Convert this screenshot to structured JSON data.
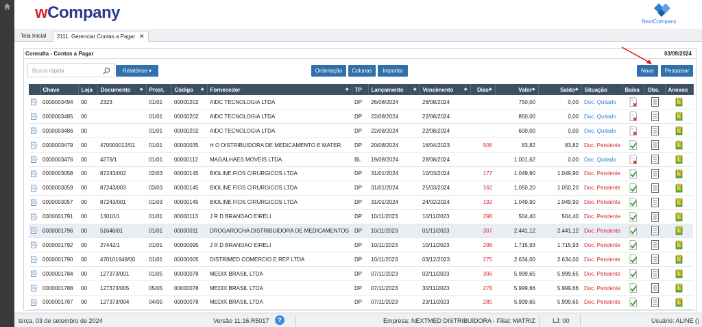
{
  "app": {
    "logo_w": "w",
    "logo_company": "Company",
    "partner_logo": "NextCompany"
  },
  "tabs": [
    {
      "label": "Tela Inicial"
    },
    {
      "label": "2111. Gerenciar Contas a Pagar",
      "close": "✕"
    }
  ],
  "panel": {
    "title": "Consulta - Contas a Pagar",
    "date": "03/09/2024"
  },
  "toolbar": {
    "search_placeholder": "Busca rápida",
    "relatorios": "Relatórios ▾",
    "ordenacao": "Ordenação",
    "colunas": "Colunas",
    "importar": "Importar",
    "novo": "Novo",
    "pesquisar": "Pesquisar"
  },
  "columns": [
    "",
    "Chave",
    "Loja",
    "Documento",
    "Prest.",
    "Código",
    "Fornecedor",
    "TP",
    "Lançamento",
    "Vencimento",
    "Dias",
    "Valor",
    "Saldo",
    "Situação",
    "Baixa",
    "Obs.",
    "Anexos"
  ],
  "rows": [
    {
      "chave": "0000003494",
      "loja": "00",
      "documento": "2323",
      "prest": "01/01",
      "codigo": "00000202",
      "fornecedor": "AIDC TECNOLOGIA LTDA",
      "tp": "DP",
      "lancamento": "26/08/2024",
      "vencimento": "26/08/2024",
      "dias": "",
      "valor": "750,00",
      "saldo": "0,00",
      "situacao": "Doc. Quitado",
      "baixa": "x"
    },
    {
      "chave": "0000003485",
      "loja": "00",
      "documento": "",
      "prest": "01/01",
      "codigo": "00000202",
      "fornecedor": "AIDC TECNOLOGIA LTDA",
      "tp": "DP",
      "lancamento": "22/08/2024",
      "vencimento": "22/08/2024",
      "dias": "",
      "valor": "850,00",
      "saldo": "0,00",
      "situacao": "Doc. Quitado",
      "baixa": "x"
    },
    {
      "chave": "0000003486",
      "loja": "00",
      "documento": "",
      "prest": "01/01",
      "codigo": "00000202",
      "fornecedor": "AIDC TECNOLOGIA LTDA",
      "tp": "DP",
      "lancamento": "22/08/2024",
      "vencimento": "22/08/2024",
      "dias": "",
      "valor": "600,00",
      "saldo": "0,00",
      "situacao": "Doc. Quitado",
      "baixa": "x"
    },
    {
      "chave": "0000003479",
      "loja": "00",
      "documento": "470000012/01",
      "prest": "01/01",
      "codigo": "00000035",
      "fornecedor": "H O DISTRIBUIDORA DE MEDICAMENTO E MATER",
      "tp": "DP",
      "lancamento": "20/08/2024",
      "vencimento": "16/04/2023",
      "dias": "506",
      "valor": "83,82",
      "saldo": "83,82",
      "situacao": "Doc. Pendente",
      "baixa": "check"
    },
    {
      "chave": "0000003476",
      "loja": "00",
      "documento": "4276/1",
      "prest": "01/01",
      "codigo": "00000112",
      "fornecedor": "MAGALHAES MOVEIS LTDA",
      "tp": "BL",
      "lancamento": "19/08/2024",
      "vencimento": "28/08/2024",
      "dias": "",
      "valor": "1.001,62",
      "saldo": "0,00",
      "situacao": "Doc. Quitado",
      "baixa": "x"
    },
    {
      "chave": "0000003058",
      "loja": "00",
      "documento": "87243/002",
      "prest": "02/03",
      "codigo": "00000145",
      "fornecedor": "BIOLINE FIOS CIRURGICOS LTDA",
      "tp": "DP",
      "lancamento": "31/01/2024",
      "vencimento": "10/03/2024",
      "dias": "177",
      "valor": "1.049,90",
      "saldo": "1.049,90",
      "situacao": "Doc. Pendente",
      "baixa": "check"
    },
    {
      "chave": "0000003059",
      "loja": "00",
      "documento": "87243/003",
      "prest": "03/03",
      "codigo": "00000145",
      "fornecedor": "BIOLINE FIOS CIRURGICOS LTDA",
      "tp": "DP",
      "lancamento": "31/01/2024",
      "vencimento": "25/03/2024",
      "dias": "162",
      "valor": "1.050,20",
      "saldo": "1.050,20",
      "situacao": "Doc. Pendente",
      "baixa": "check"
    },
    {
      "chave": "0000003057",
      "loja": "00",
      "documento": "87243/001",
      "prest": "01/03",
      "codigo": "00000145",
      "fornecedor": "BIOLINE FIOS CIRURGICOS LTDA",
      "tp": "DP",
      "lancamento": "31/01/2024",
      "vencimento": "24/02/2024",
      "dias": "192",
      "valor": "1.049,90",
      "saldo": "1.049,90",
      "situacao": "Doc. Pendente",
      "baixa": "check"
    },
    {
      "chave": "0000001791",
      "loja": "00",
      "documento": "13010/1",
      "prest": "01/01",
      "codigo": "00000113",
      "fornecedor": "J R D BRANDAO EIRELI",
      "tp": "DP",
      "lancamento": "10/11/2023",
      "vencimento": "10/11/2023",
      "dias": "298",
      "valor": "504,40",
      "saldo": "504,40",
      "situacao": "Doc. Pendente",
      "baixa": "check"
    },
    {
      "chave": "0000001796",
      "loja": "00",
      "documento": "51648/01",
      "prest": "01/01",
      "codigo": "00000011",
      "fornecedor": "DROGAROCHA DISTRIBUIDORA DE MEDICAMENTOS",
      "tp": "DP",
      "lancamento": "10/11/2023",
      "vencimento": "01/11/2023",
      "dias": "307",
      "valor": "2.441,12",
      "saldo": "2.441,12",
      "situacao": "Doc. Pendente",
      "baixa": "check"
    },
    {
      "chave": "0000001792",
      "loja": "00",
      "documento": "27442/1",
      "prest": "01/01",
      "codigo": "00000095",
      "fornecedor": "J R D BRANDAO EIRELI",
      "tp": "DP",
      "lancamento": "10/11/2023",
      "vencimento": "10/11/2023",
      "dias": "298",
      "valor": "1.715,93",
      "saldo": "1.715,93",
      "situacao": "Doc. Pendente",
      "baixa": "check"
    },
    {
      "chave": "0000001790",
      "loja": "00",
      "documento": "470101948/00",
      "prest": "01/01",
      "codigo": "00000005",
      "fornecedor": "DISTRIMED COMERCIO E REP LTDA",
      "tp": "DP",
      "lancamento": "10/11/2023",
      "vencimento": "03/12/2023",
      "dias": "275",
      "valor": "2.634,00",
      "saldo": "2.634,00",
      "situacao": "Doc. Pendente",
      "baixa": "check"
    },
    {
      "chave": "0000001784",
      "loja": "00",
      "documento": "127373/001",
      "prest": "01/05",
      "codigo": "00000078",
      "fornecedor": "MEDIX BRASIL LTDA",
      "tp": "DP",
      "lancamento": "07/11/2023",
      "vencimento": "02/11/2023",
      "dias": "306",
      "valor": "5.999,65",
      "saldo": "5.999,65",
      "situacao": "Doc. Pendente",
      "baixa": "check"
    },
    {
      "chave": "0000001788",
      "loja": "00",
      "documento": "127373/005",
      "prest": "05/05",
      "codigo": "00000078",
      "fornecedor": "MEDIX BRASIL LTDA",
      "tp": "DP",
      "lancamento": "07/11/2023",
      "vencimento": "30/11/2023",
      "dias": "278",
      "valor": "5.999,66",
      "saldo": "5.999,66",
      "situacao": "Doc. Pendente",
      "baixa": "check"
    },
    {
      "chave": "0000001787",
      "loja": "00",
      "documento": "127373/004",
      "prest": "04/05",
      "codigo": "00000078",
      "fornecedor": "MEDIX BRASIL LTDA",
      "tp": "DP",
      "lancamento": "07/11/2023",
      "vencimento": "23/11/2023",
      "dias": "285",
      "valor": "5.999,65",
      "saldo": "5.999,65",
      "situacao": "Doc. Pendente",
      "baixa": "check"
    }
  ],
  "footer": {
    "date": "terça, 03 de setembro de 2024",
    "version": "Versão 11.16.R5017",
    "help": "?",
    "empresa": "Empresa: NEXTMED DISTRIBUIDORA - Filial: MATRIZ",
    "lj": "LJ: 00",
    "usuario": "Usuário: ALINE ()"
  },
  "colors": {
    "header_bg": "#3d4f62",
    "button_blue": "#2f70ad",
    "pending_red": "#d6262a",
    "paid_blue": "#2e7fd6"
  }
}
